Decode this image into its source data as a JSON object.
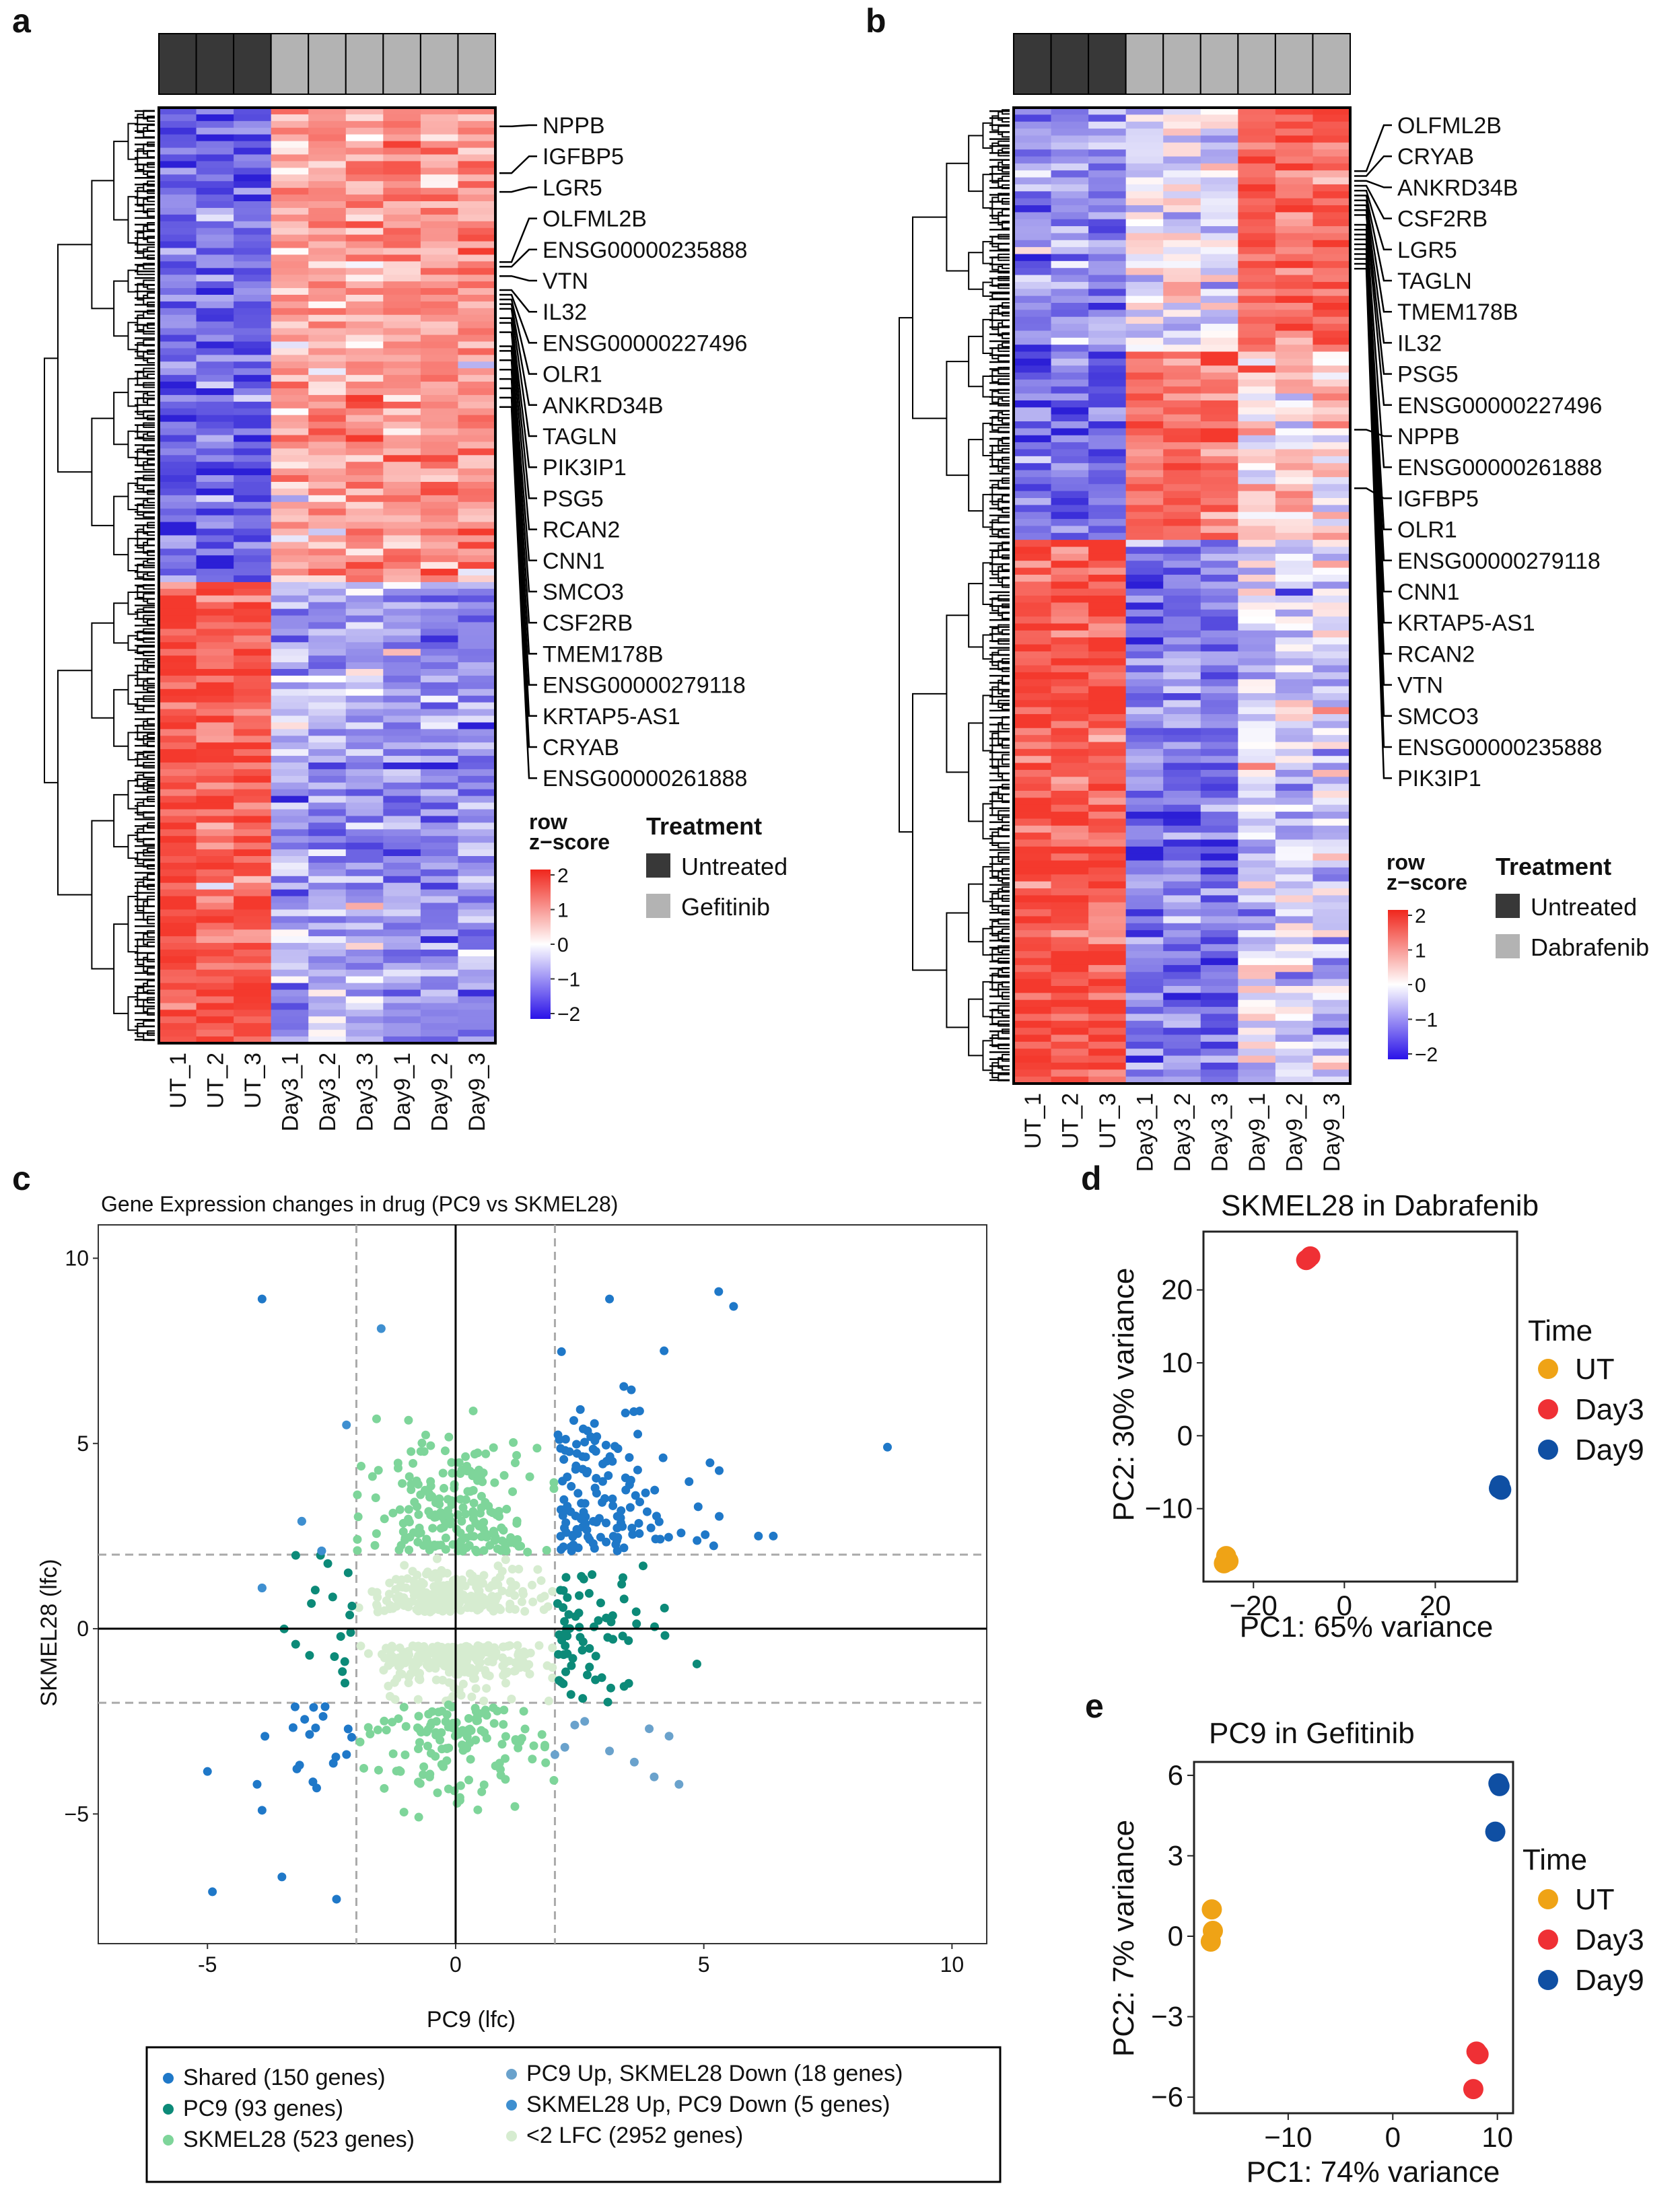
{
  "colors": {
    "high": "#f4392d",
    "mid": "#ffffff",
    "low": "#2c1fd6",
    "untreated": "#383838",
    "treated": "#b3b3b3",
    "shared": "#1f78c8",
    "pc9": "#0c8a78",
    "skmel28": "#7ed59a",
    "pc9up_skdown": "#6aa2cc",
    "skup_pc9down": "#3e8fd0",
    "lt2": "#d6ecd0",
    "ut_point": "#efa316",
    "day3_point": "#ef3035",
    "day9_point": "#0f4fa3"
  },
  "panel_a": {
    "letter": "a",
    "columns": [
      "UT_1",
      "UT_2",
      "UT_3",
      "Day3_1",
      "Day3_2",
      "Day3_3",
      "Day9_1",
      "Day9_2",
      "Day9_3"
    ],
    "treatment": [
      "Untreated",
      "Untreated",
      "Untreated",
      "Gefitinib",
      "Gefitinib",
      "Gefitinib",
      "Gefitinib",
      "Gefitinib",
      "Gefitinib"
    ],
    "genes": [
      "NPPB",
      "IGFBP5",
      "LGR5",
      "OLFML2B",
      "ENSG00000235888",
      "VTN",
      "IL32",
      "ENSG00000227496",
      "OLR1",
      "ANKRD34B",
      "TAGLN",
      "PIK3IP1",
      "PSG5",
      "RCAN2",
      "CNN1",
      "SMCO3",
      "CSF2RB",
      "TMEM178B",
      "ENSG00000279118",
      "KRTAP5-AS1",
      "CRYAB",
      "ENSG00000261888"
    ],
    "gene_rows": [
      0.02,
      0.07,
      0.09,
      0.165,
      0.17,
      0.18,
      0.195,
      0.2,
      0.205,
      0.21,
      0.215,
      0.225,
      0.23,
      0.24,
      0.255,
      0.26,
      0.27,
      0.28,
      0.29,
      0.3,
      0.31,
      0.32
    ],
    "colorkey_title": "row\nz−score",
    "colorkey_ticks": [
      "2",
      "1",
      "0",
      "−1",
      "−2"
    ],
    "legend_title": "Treatment",
    "legend_items": [
      "Untreated",
      "Gefitinib"
    ],
    "split_fraction": 0.505
  },
  "panel_b": {
    "letter": "b",
    "columns": [
      "UT_1",
      "UT_2",
      "UT_3",
      "Day3_1",
      "Day3_2",
      "Day3_3",
      "Day9_1",
      "Day9_2",
      "Day9_3"
    ],
    "treatment": [
      "Untreated",
      "Untreated",
      "Untreated",
      "Dabrafenib",
      "Dabrafenib",
      "Dabrafenib",
      "Dabrafenib",
      "Dabrafenib",
      "Dabrafenib"
    ],
    "genes": [
      "OLFML2B",
      "CRYAB",
      "ANKRD34B",
      "CSF2RB",
      "LGR5",
      "TAGLN",
      "TMEM178B",
      "IL32",
      "PSG5",
      "ENSG00000227496",
      "NPPB",
      "ENSG00000261888",
      "IGFBP5",
      "OLR1",
      "ENSG00000279118",
      "CNN1",
      "KRTAP5-AS1",
      "RCAN2",
      "VTN",
      "SMCO3",
      "ENSG00000235888",
      "PIK3IP1"
    ],
    "gene_rows": [
      0.065,
      0.07,
      0.075,
      0.08,
      0.085,
      0.09,
      0.095,
      0.1,
      0.105,
      0.11,
      0.33,
      0.12,
      0.39,
      0.125,
      0.13,
      0.135,
      0.14,
      0.145,
      0.15,
      0.155,
      0.16,
      0.165
    ],
    "colorkey_title": "row\nz−score",
    "colorkey_ticks": [
      "2",
      "1",
      "0",
      "−1",
      "−2"
    ],
    "legend_title": "Treatment",
    "legend_items": [
      "Untreated",
      "Dabrafenib"
    ],
    "split_fraction": 0.445
  },
  "panel_c": {
    "letter": "c",
    "chart_data": {
      "type": "scatter",
      "title": "Gene Expression changes in drug (PC9 vs SKMEL28)",
      "xlabel": "PC9 (lfc)",
      "ylabel": "SKMEL28 (lfc)",
      "xlim": [
        -7.2,
        10.7
      ],
      "ylim": [
        -8.5,
        10.9
      ],
      "xticks": [
        -5,
        0,
        5,
        10
      ],
      "yticks": [
        -5,
        0,
        5,
        10
      ],
      "threshold": 2,
      "series": [
        {
          "name": "Shared (150 genes)",
          "key": "shared",
          "count": 150
        },
        {
          "name": "PC9 (93 genes)",
          "key": "pc9",
          "count": 93
        },
        {
          "name": "SKMEL28 (523 genes)",
          "key": "skmel28",
          "count": 523
        },
        {
          "name": "PC9 Up, SKMEL28 Down (18 genes)",
          "key": "pc9up_skdown",
          "count": 18
        },
        {
          "name": "SKMEL28 Up, PC9 Down (5 genes)",
          "key": "skup_pc9down",
          "count": 5
        },
        {
          "name": "<2 LFC (2952 genes)",
          "key": "lt2",
          "count": 2952
        }
      ],
      "highlight_points": {
        "shared": [
          [
            -3.9,
            8.9
          ],
          [
            8.7,
            4.9
          ],
          [
            5.6,
            8.7
          ],
          [
            5.3,
            9.1
          ],
          [
            4.2,
            7.5
          ],
          [
            3.1,
            8.9
          ],
          [
            -4.9,
            -7.1
          ],
          [
            -3.5,
            -6.7
          ],
          [
            -2.4,
            -7.3
          ],
          [
            -4,
            -4.2
          ],
          [
            -3.9,
            -4.9
          ],
          [
            -2.8,
            -4.3
          ],
          [
            -3.1,
            2.9
          ],
          [
            -2.7,
            2.1
          ],
          [
            -3.9,
            1.1
          ],
          [
            6.4,
            2.5
          ],
          [
            6.1,
            2.5
          ]
        ],
        "skup_pc9down": [
          [
            -3.9,
            1.1
          ],
          [
            -3.1,
            2.9
          ],
          [
            -2.7,
            2.1
          ],
          [
            -2.2,
            5.5
          ],
          [
            -1.5,
            8.1
          ]
        ],
        "pc9up_skdown": [
          [
            2.2,
            -3.2
          ],
          [
            2.6,
            -2.5
          ],
          [
            3.1,
            -3.3
          ],
          [
            3.6,
            -3.6
          ],
          [
            4.0,
            -4.0
          ],
          [
            4.5,
            -4.2
          ],
          [
            3.9,
            -2.7
          ],
          [
            4.3,
            -2.9
          ],
          [
            2.4,
            -2.6
          ],
          [
            2.0,
            -3.4
          ]
        ]
      }
    }
  },
  "panel_d": {
    "letter": "d",
    "chart_data": {
      "type": "scatter",
      "title": "SKMEL28 in Dabrafenib",
      "xlabel": "PC1: 65% variance",
      "ylabel": "PC2: 30% variance",
      "xlim": [
        -31,
        38
      ],
      "ylim": [
        -20,
        28
      ],
      "xticks": [
        -20,
        0,
        20
      ],
      "yticks": [
        -10,
        0,
        10,
        20
      ],
      "legend_title": "Time",
      "series": [
        {
          "name": "UT",
          "color_key": "ut_point",
          "points": [
            [
              -26,
              -16.5
            ],
            [
              -25.5,
              -17.2
            ],
            [
              -26.5,
              -17.5
            ]
          ]
        },
        {
          "name": "Day3",
          "color_key": "day3_point",
          "points": [
            [
              -8,
              24.3
            ],
            [
              -7.5,
              24.6
            ],
            [
              -8.4,
              24.1
            ]
          ]
        },
        {
          "name": "Day9",
          "color_key": "day9_point",
          "points": [
            [
              34,
              -7.2
            ],
            [
              34.5,
              -7.4
            ],
            [
              34.2,
              -6.8
            ]
          ]
        }
      ]
    }
  },
  "panel_e": {
    "letter": "e",
    "chart_data": {
      "type": "scatter",
      "title": "PC9 in Gefitinib",
      "xlabel": "PC1: 74% variance",
      "ylabel": "PC2: 7% variance",
      "xlim": [
        -19,
        11.5
      ],
      "ylim": [
        -6.6,
        6.5
      ],
      "xticks": [
        -10,
        0,
        10
      ],
      "yticks": [
        -6,
        -3,
        0,
        3,
        6
      ],
      "legend_title": "Time",
      "series": [
        {
          "name": "UT",
          "color_key": "ut_point",
          "points": [
            [
              -17.3,
              1.0
            ],
            [
              -17.2,
              0.2
            ],
            [
              -17.4,
              -0.2
            ]
          ]
        },
        {
          "name": "Day3",
          "color_key": "day3_point",
          "points": [
            [
              8,
              -4.3
            ],
            [
              7.7,
              -5.7
            ],
            [
              8.2,
              -4.4
            ]
          ]
        },
        {
          "name": "Day9",
          "color_key": "day9_point",
          "points": [
            [
              10.2,
              5.6
            ],
            [
              9.8,
              3.9
            ],
            [
              10.1,
              5.7
            ]
          ]
        }
      ]
    }
  }
}
